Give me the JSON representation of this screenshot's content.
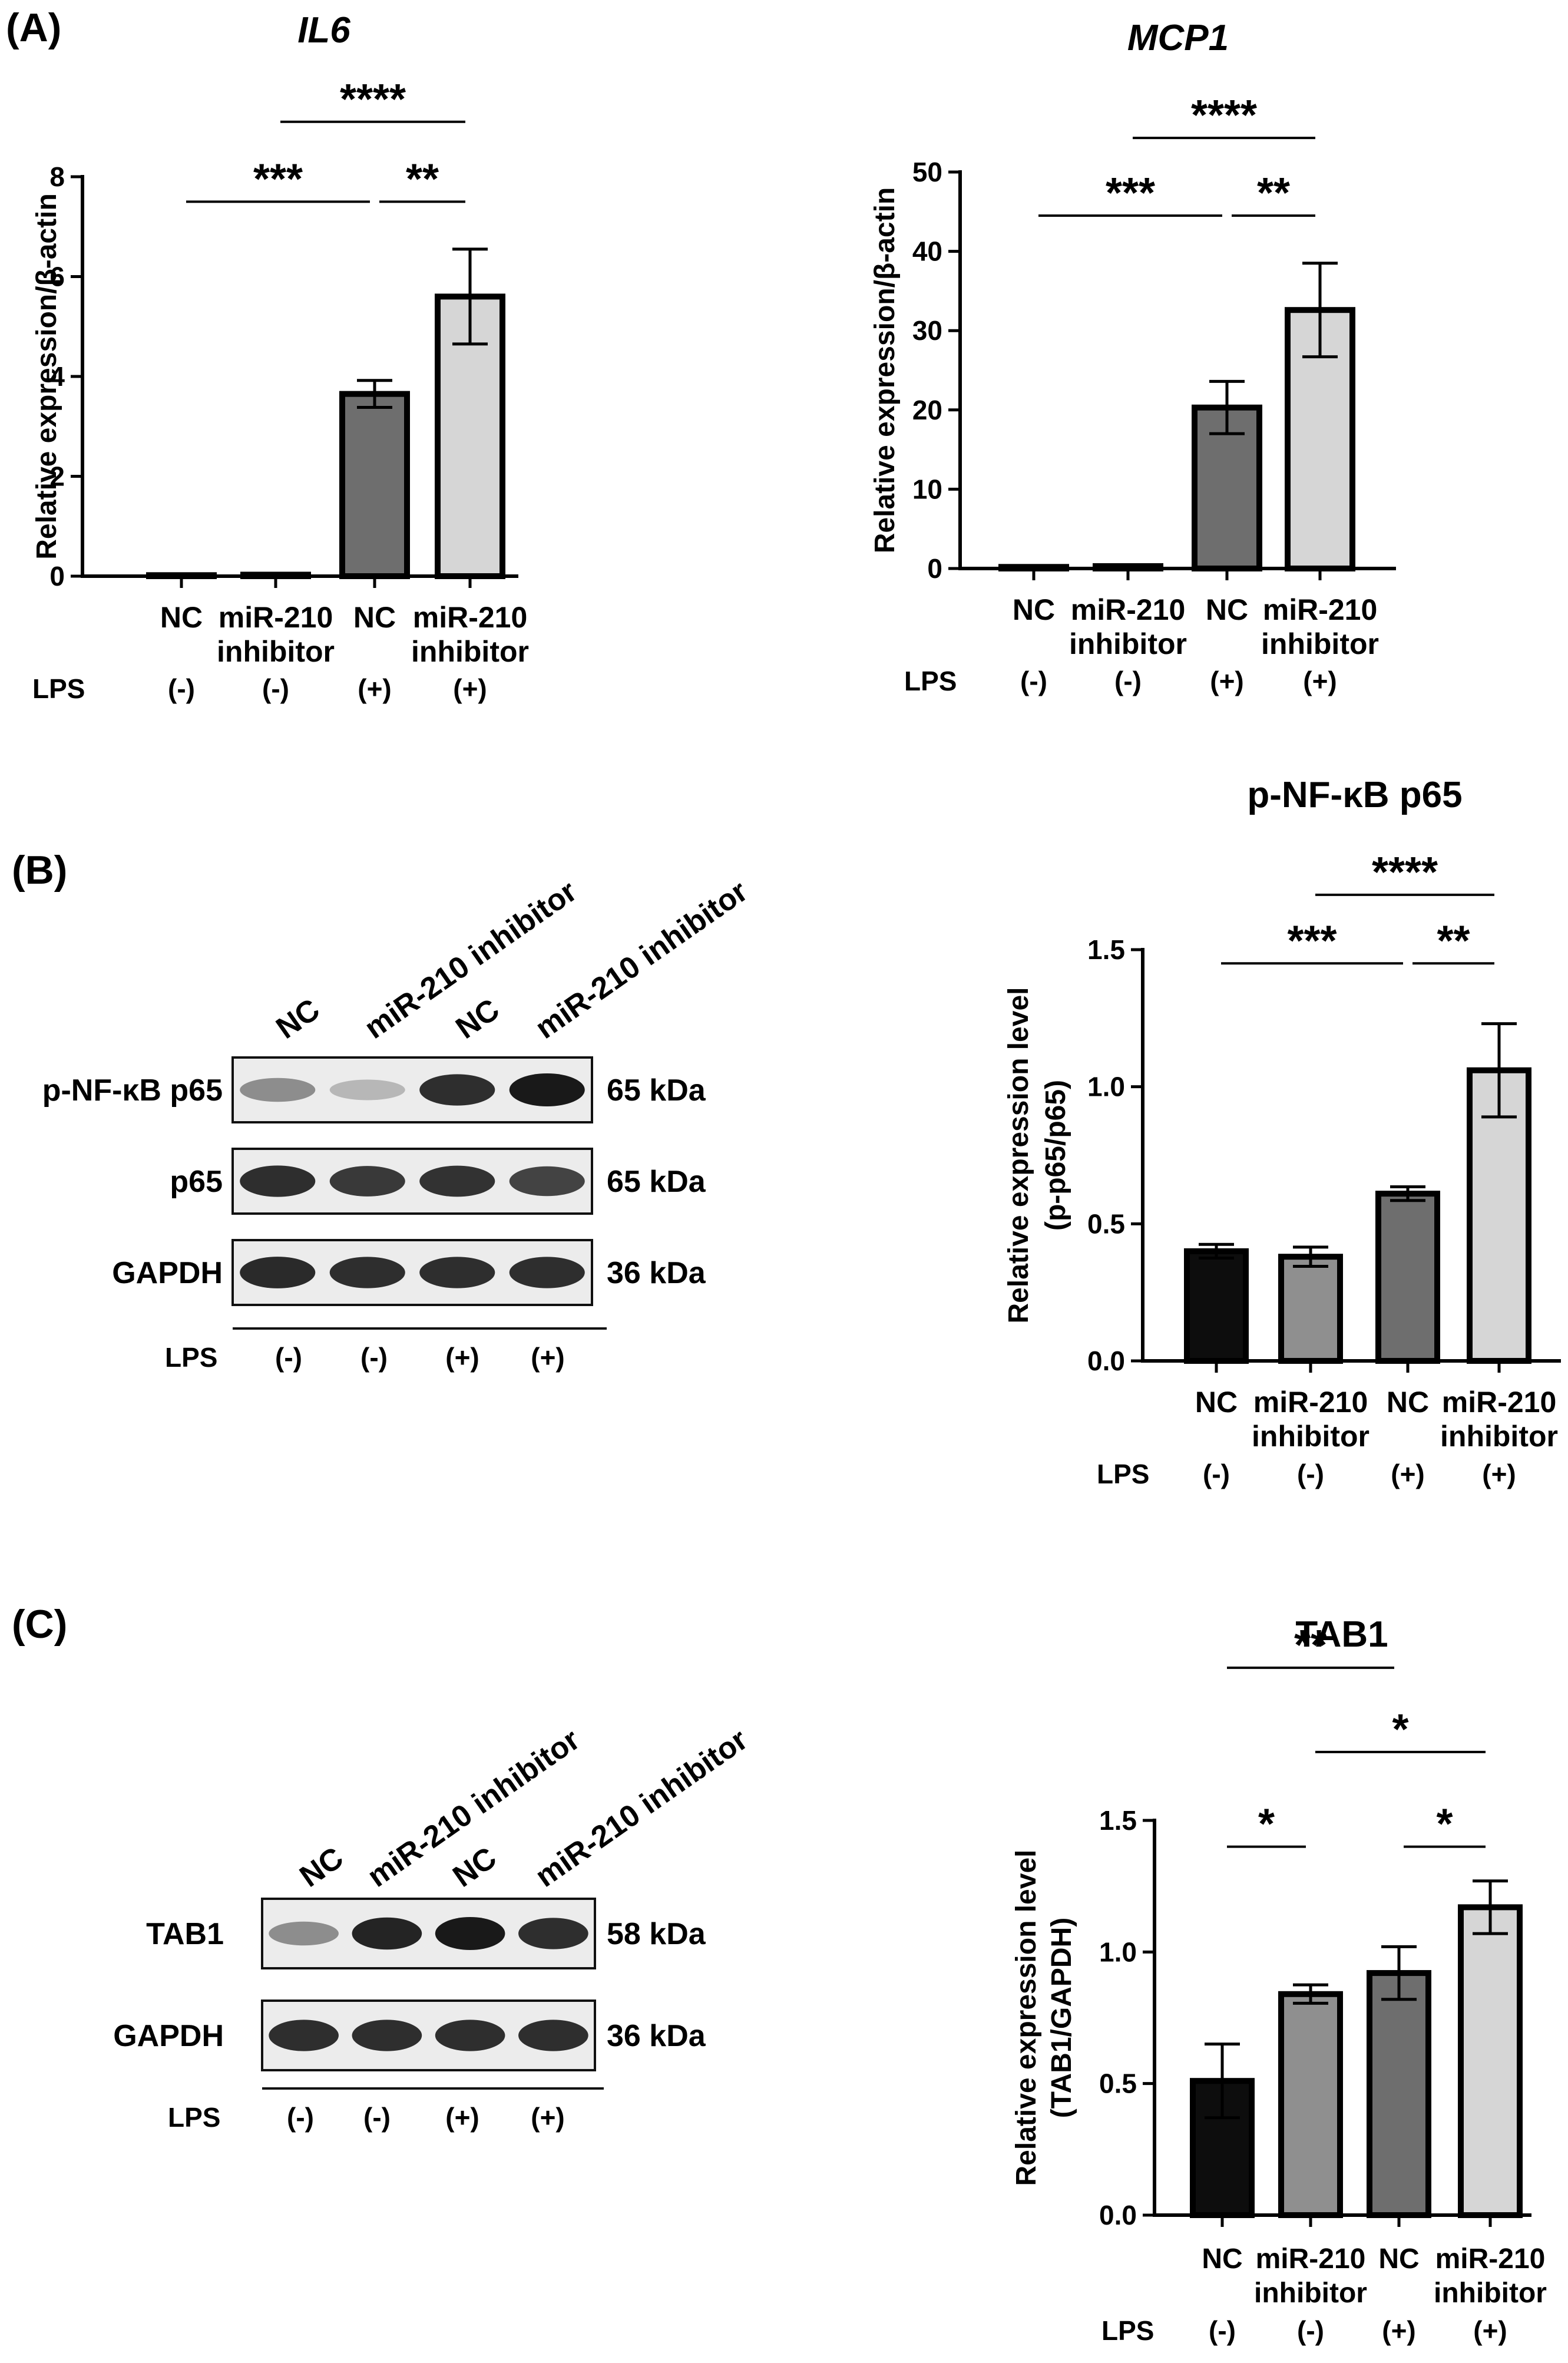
{
  "panel_labels": [
    "(A)",
    "(B)",
    "(C)"
  ],
  "lps_label": "LPS",
  "groups": [
    {
      "name": "NC",
      "sub": "",
      "lps": "(-)",
      "color": "#0d0d0d"
    },
    {
      "name": "miR-210",
      "sub": "inhibitor",
      "lps": "(-)",
      "color": "#8f8f8f"
    },
    {
      "name": "NC",
      "sub": "",
      "lps": "(+)",
      "color": "#6e6e6e"
    },
    {
      "name": "miR-210",
      "sub": "inhibitor",
      "lps": "(+)",
      "color": "#d6d6d6"
    }
  ],
  "blots": {
    "b": {
      "lane_labels": [
        "NC",
        "miR-210 inhibitor",
        "NC",
        "miR-210 inhibitor"
      ],
      "lps": [
        "(-)",
        "(-)",
        "(+)",
        "(+)"
      ],
      "rows": [
        {
          "label": "p-NF-κB p65",
          "kda": "65 kDa",
          "intensity": [
            0.45,
            0.25,
            0.9,
            1.0
          ]
        },
        {
          "label": "p65",
          "kda": "65 kDa",
          "intensity": [
            0.9,
            0.85,
            0.88,
            0.8
          ]
        },
        {
          "label": "GAPDH",
          "kda": "36 kDa",
          "intensity": [
            0.92,
            0.9,
            0.9,
            0.9
          ]
        }
      ]
    },
    "c": {
      "lane_labels": [
        "NC",
        "miR-210 inhibitor",
        "NC",
        "miR-210 inhibitor"
      ],
      "lps": [
        "(-)",
        "(-)",
        "(+)",
        "(+)"
      ],
      "rows": [
        {
          "label": "TAB1",
          "kda": "58 kDa",
          "intensity": [
            0.45,
            0.95,
            1.0,
            0.9
          ]
        },
        {
          "label": "GAPDH",
          "kda": "36 kDa",
          "intensity": [
            0.9,
            0.9,
            0.9,
            0.9
          ]
        }
      ]
    }
  },
  "chart_data": [
    {
      "id": "il6",
      "panel": "A",
      "type": "bar",
      "title": "IL6",
      "title_italic": true,
      "ylabel": "Relative expression/β-actin",
      "ylim": [
        0,
        8
      ],
      "yticks": [
        0,
        2,
        4,
        6,
        8
      ],
      "tick_labels": [
        "0",
        "2",
        "4",
        "6",
        "8"
      ],
      "categories": [
        "NC (-)",
        "miR-210 inhibitor (-)",
        "NC (+)",
        "miR-210 inhibitor (+)"
      ],
      "values": [
        0.02,
        0.03,
        3.65,
        5.6
      ],
      "errors": [
        0,
        0,
        0.27,
        0.95
      ],
      "significance": [
        {
          "from": 0,
          "to": 2,
          "label": "***",
          "y": 7.5
        },
        {
          "from": 2,
          "to": 3,
          "label": "**",
          "y": 7.5
        },
        {
          "from": 1,
          "to": 3,
          "label": "****",
          "y": 9.1
        }
      ]
    },
    {
      "id": "mcp1",
      "panel": "A",
      "type": "bar",
      "title": "MCP1",
      "title_italic": true,
      "ylabel": "Relative expression/β-actin",
      "ylim": [
        0,
        50
      ],
      "yticks": [
        0,
        10,
        20,
        30,
        40,
        50
      ],
      "tick_labels": [
        "0",
        "10",
        "20",
        "30",
        "40",
        "50"
      ],
      "categories": [
        "NC (-)",
        "miR-210 inhibitor (-)",
        "NC (+)",
        "miR-210 inhibitor (+)"
      ],
      "values": [
        0.2,
        0.3,
        20.3,
        32.6
      ],
      "errors": [
        0,
        0,
        3.3,
        5.9
      ],
      "significance": [
        {
          "from": 0,
          "to": 2,
          "label": "***",
          "y": 44.5
        },
        {
          "from": 2,
          "to": 3,
          "label": "**",
          "y": 44.5
        },
        {
          "from": 1,
          "to": 3,
          "label": "****",
          "y": 54.3
        }
      ]
    },
    {
      "id": "pnfkb",
      "panel": "B",
      "type": "bar",
      "title": "p-NF-κB p65",
      "title_italic": false,
      "ylabel": "Relative expression level",
      "ylabel2": "(p-p65/p65)",
      "ylim": [
        0,
        1.5
      ],
      "yticks": [
        0,
        0.5,
        1.0,
        1.5
      ],
      "tick_labels": [
        "0.0",
        "0.5",
        "1.0",
        "1.5"
      ],
      "categories": [
        "NC (-)",
        "miR-210 inhibitor (-)",
        "NC (+)",
        "miR-210 inhibitor (+)"
      ],
      "values": [
        0.4,
        0.38,
        0.61,
        1.06
      ],
      "errors": [
        0.025,
        0.035,
        0.025,
        0.17
      ],
      "significance": [
        {
          "from": 0,
          "to": 2,
          "label": "***",
          "y": 1.45
        },
        {
          "from": 2,
          "to": 3,
          "label": "**",
          "y": 1.45
        },
        {
          "from": 1,
          "to": 3,
          "label": "****",
          "y": 1.7
        }
      ]
    },
    {
      "id": "tab1",
      "panel": "C",
      "type": "bar",
      "title": "TAB1",
      "title_italic": false,
      "ylabel": "Relative expression level",
      "ylabel2": "(TAB1/GAPDH)",
      "ylim": [
        0,
        1.5
      ],
      "yticks": [
        0,
        0.5,
        1.0,
        1.5
      ],
      "tick_labels": [
        "0.0",
        "0.5",
        "1.0",
        "1.5"
      ],
      "categories": [
        "NC (-)",
        "miR-210 inhibitor (-)",
        "NC (+)",
        "miR-210 inhibitor (+)"
      ],
      "values": [
        0.51,
        0.84,
        0.92,
        1.17
      ],
      "errors": [
        0.14,
        0.035,
        0.1,
        0.1
      ],
      "significance": [
        {
          "from": 0,
          "to": 1,
          "label": "*",
          "y": 1.4
        },
        {
          "from": 2,
          "to": 3,
          "label": "*",
          "y": 1.4
        },
        {
          "from": 1,
          "to": 3,
          "label": "*",
          "y": 1.76
        },
        {
          "from": 0,
          "to": 2,
          "label": "**",
          "y": 2.08
        }
      ]
    }
  ]
}
